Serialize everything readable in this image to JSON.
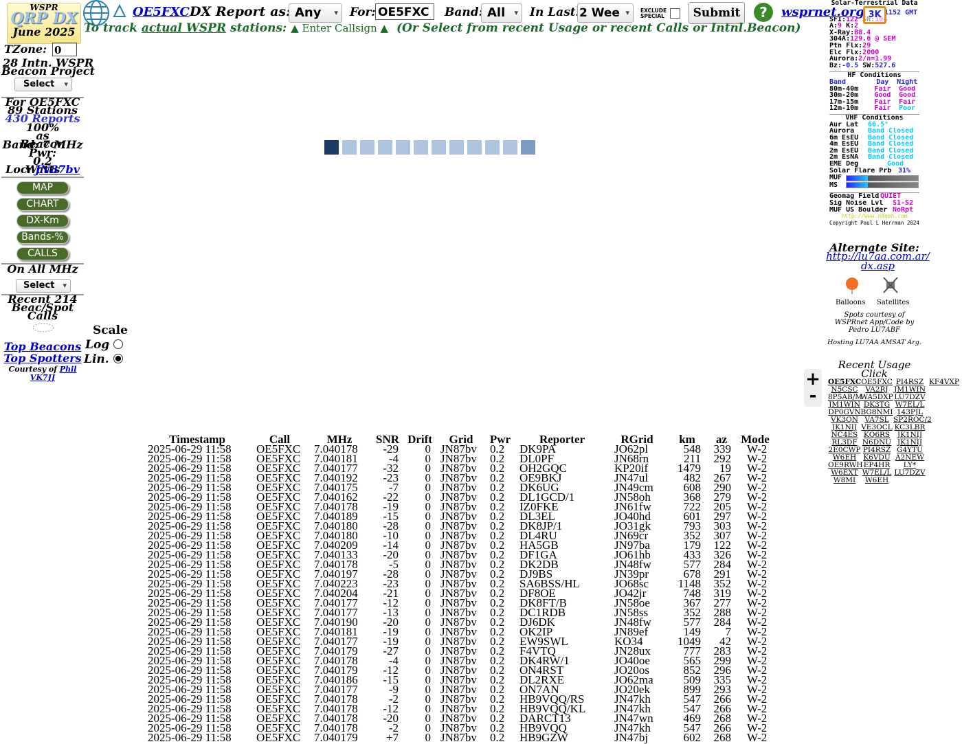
{
  "header": {
    "wspr": "WSPR",
    "logo": "QRP DX",
    "date": "June 2025",
    "call": "OE5FXC",
    "report_as": "DX Report as:",
    "as_value": "Any",
    "for_label": "For:",
    "for_value": "OE5FXC",
    "band_label": "Band:",
    "band_value": "All",
    "last_label": "In Last:",
    "last_value": "2 Wee",
    "exclude": "EXCLUDE SPECIAL",
    "submit": "Submit",
    "help": "?",
    "site": "wsprnet.org",
    "k3": "3K"
  },
  "subheader": {
    "track": "To track",
    "actual": "actual WSPR",
    "stations": "stations:",
    "enter": "▲ Enter Callsign ▲",
    "or_select": "(Or Select from recent Usage or recent Calls or Intnl.Beacon)"
  },
  "sidebar": {
    "tzone_label": "TZone:",
    "tzone_value": "0",
    "beacon_project": "28 Intn. WSPR Beacon Project",
    "select1": "Select",
    "for_call": "For OE5FXC",
    "stations": "89 Stations",
    "reports": "430 Reports",
    "beacon_pct": "100% as Beacon",
    "band": "Band: 7 MHz",
    "pwr": "Pwr: 0.2 Watts",
    "loc_label": "Loc:",
    "loc_value": "JN87bv",
    "buttons": [
      "MAP",
      "CHART",
      "DX-Km",
      "Bands-%",
      "CALLS"
    ],
    "all_mhz": "On All MHz",
    "select2": "Select",
    "recent_calls": "Recent 214 Beac/Spot Calls",
    "top_beacons": "Top Beacons",
    "top_spotters": "Top Spotters",
    "courtesy": "Courtesy of",
    "courtesy_link": "Phil VK7JJ"
  },
  "scale": {
    "title": "Scale",
    "log": "Log",
    "lin": "Lin."
  },
  "table": {
    "columns": [
      "Timestamp",
      "Call",
      "MHz",
      "SNR",
      "Drift",
      "Grid",
      "Pwr",
      "Reporter",
      "RGrid",
      "km",
      "az",
      "Mode"
    ],
    "rows": [
      [
        "2025-06-29 11:58",
        "OE5FXC",
        "7.040178",
        "-29",
        "0",
        "JN87bv",
        "0.2",
        "DK9PA",
        "JO62pl",
        "548",
        "339",
        "W-2"
      ],
      [
        "2025-06-29 11:58",
        "OE5FXC",
        "7.040181",
        "-4",
        "0",
        "JN87bv",
        "0.2",
        "DL0PF",
        "JN68rn",
        "211",
        "292",
        "W-2"
      ],
      [
        "2025-06-29 11:58",
        "OE5FXC",
        "7.040177",
        "-32",
        "0",
        "JN87bv",
        "0.2",
        "OH2GQC",
        "KP20if",
        "1479",
        "19",
        "W-2"
      ],
      [
        "2025-06-29 11:58",
        "OE5FXC",
        "7.040192",
        "-23",
        "0",
        "JN87bv",
        "0.2",
        "OE9BKJ",
        "JN47ul",
        "482",
        "267",
        "W-2"
      ],
      [
        "2025-06-29 11:58",
        "OE5FXC",
        "7.040175",
        "-7",
        "0",
        "JN87bv",
        "0.2",
        "DK6UG",
        "JN49cm",
        "608",
        "290",
        "W-2"
      ],
      [
        "2025-06-29 11:58",
        "OE5FXC",
        "7.040162",
        "-22",
        "0",
        "JN87bv",
        "0.2",
        "DL1GCD/1",
        "JN58oh",
        "368",
        "279",
        "W-2"
      ],
      [
        "2025-06-29 11:58",
        "OE5FXC",
        "7.040178",
        "-19",
        "0",
        "JN87bv",
        "0.2",
        "IZ0FKE",
        "JN61fw",
        "722",
        "205",
        "W-2"
      ],
      [
        "2025-06-29 11:58",
        "OE5FXC",
        "7.040189",
        "-15",
        "0",
        "JN87bv",
        "0.2",
        "DL3EL",
        "JO40hd",
        "601",
        "297",
        "W-2"
      ],
      [
        "2025-06-29 11:58",
        "OE5FXC",
        "7.040180",
        "-28",
        "0",
        "JN87bv",
        "0.2",
        "DK8JP/1",
        "JO31gk",
        "793",
        "303",
        "W-2"
      ],
      [
        "2025-06-29 11:58",
        "OE5FXC",
        "7.040180",
        "-10",
        "0",
        "JN87bv",
        "0.2",
        "DL4RU",
        "JN69cr",
        "352",
        "307",
        "W-2"
      ],
      [
        "2025-06-29 11:58",
        "OE5FXC",
        "7.040209",
        "-14",
        "0",
        "JN87bv",
        "0.2",
        "HA5GB",
        "JN97ba",
        "179",
        "122",
        "W-2"
      ],
      [
        "2025-06-29 11:58",
        "OE5FXC",
        "7.040133",
        "-20",
        "0",
        "JN87bv",
        "0.2",
        "DF1GA",
        "JO61hb",
        "433",
        "326",
        "W-2"
      ],
      [
        "2025-06-29 11:58",
        "OE5FXC",
        "7.040178",
        "-5",
        "0",
        "JN87bv",
        "0.2",
        "DK2DB",
        "JN48fw",
        "577",
        "284",
        "W-2"
      ],
      [
        "2025-06-29 11:58",
        "OE5FXC",
        "7.040197",
        "-28",
        "0",
        "JN87bv",
        "0.2",
        "DJ9BS",
        "JN39pr",
        "678",
        "291",
        "W-2"
      ],
      [
        "2025-06-29 11:58",
        "OE5FXC",
        "7.040223",
        "-23",
        "0",
        "JN87bv",
        "0.2",
        "SA6BSS/HL",
        "JO68sc",
        "1148",
        "352",
        "W-2"
      ],
      [
        "2025-06-29 11:58",
        "OE5FXC",
        "7.040204",
        "-21",
        "0",
        "JN87bv",
        "0.2",
        "DF8OE",
        "JO42jr",
        "748",
        "319",
        "W-2"
      ],
      [
        "2025-06-29 11:58",
        "OE5FXC",
        "7.040177",
        "-12",
        "0",
        "JN87bv",
        "0.2",
        "DK8FT/B",
        "JN58oe",
        "367",
        "277",
        "W-2"
      ],
      [
        "2025-06-29 11:58",
        "OE5FXC",
        "7.040177",
        "-13",
        "0",
        "JN87bv",
        "0.2",
        "DC1RDB",
        "JN58ss",
        "352",
        "288",
        "W-2"
      ],
      [
        "2025-06-29 11:58",
        "OE5FXC",
        "7.040190",
        "-20",
        "0",
        "JN87bv",
        "0.2",
        "DJ6DK",
        "JN48fw",
        "577",
        "284",
        "W-2"
      ],
      [
        "2025-06-29 11:58",
        "OE5FXC",
        "7.040181",
        "-19",
        "0",
        "JN87bv",
        "0.2",
        "OK2IP",
        "JN89ef",
        "149",
        "7",
        "W-2"
      ],
      [
        "2025-06-29 11:58",
        "OE5FXC",
        "7.040177",
        "-19",
        "0",
        "JN87bv",
        "0.2",
        "EW9SWL",
        "KO34",
        "1049",
        "42",
        "W-2"
      ],
      [
        "2025-06-29 11:58",
        "OE5FXC",
        "7.040179",
        "-27",
        "0",
        "JN87bv",
        "0.2",
        "F4VTQ",
        "JN28ux",
        "777",
        "283",
        "W-2"
      ],
      [
        "2025-06-29 11:58",
        "OE5FXC",
        "7.040178",
        "-4",
        "0",
        "JN87bv",
        "0.2",
        "DK4RW/1",
        "JO40oe",
        "565",
        "299",
        "W-2"
      ],
      [
        "2025-06-29 11:58",
        "OE5FXC",
        "7.040179",
        "-12",
        "0",
        "JN87bv",
        "0.2",
        "ON4RST",
        "JO20os",
        "852",
        "296",
        "W-2"
      ],
      [
        "2025-06-29 11:58",
        "OE5FXC",
        "7.040186",
        "-15",
        "0",
        "JN87bv",
        "0.2",
        "DL2RXE",
        "JO62ma",
        "509",
        "335",
        "W-2"
      ],
      [
        "2025-06-29 11:58",
        "OE5FXC",
        "7.040177",
        "-9",
        "0",
        "JN87bv",
        "0.2",
        "ON7AN",
        "JO20ek",
        "899",
        "293",
        "W-2"
      ],
      [
        "2025-06-29 11:58",
        "OE5FXC",
        "7.040178",
        "-2",
        "0",
        "JN87bv",
        "0.2",
        "HB9VQQ/RS",
        "JN47kh",
        "547",
        "266",
        "W-2"
      ],
      [
        "2025-06-29 11:58",
        "OE5FXC",
        "7.040178",
        "-12",
        "0",
        "JN87bv",
        "0.2",
        "HB9VQQ/KL",
        "JN47kh",
        "547",
        "266",
        "W-2"
      ],
      [
        "2025-06-29 11:58",
        "OE5FXC",
        "7.040178",
        "-20",
        "0",
        "JN87bv",
        "0.2",
        "DARCT13",
        "JN47wn",
        "469",
        "268",
        "W-2"
      ],
      [
        "2025-06-29 11:58",
        "OE5FXC",
        "7.040178",
        "-2",
        "0",
        "JN87bv",
        "0.2",
        "HB9VQQ",
        "JN47kh",
        "547",
        "266",
        "W-2"
      ],
      [
        "2025-06-29 11:58",
        "OE5FXC",
        "7.040179",
        "+7",
        "0",
        "JN87bv",
        "0.2",
        "HB9GZW",
        "JN47bj",
        "602",
        "268",
        "W-2"
      ]
    ]
  },
  "solar": {
    "title": "Solar-Terrestrial Data",
    "time": "1152 GMT",
    "readings": [
      [
        "SFI:",
        "122"
      ],
      [
        "SN:",
        "104"
      ],
      [
        "A:",
        "9"
      ],
      [
        "K:",
        "2"
      ],
      [
        "X-Ray:",
        "B8.4"
      ],
      [
        "304A:",
        "129.6 @ SEM"
      ],
      [
        "Ptn Flx:",
        "29"
      ],
      [
        "Elc Flx:",
        "2000"
      ],
      [
        "Aurora:",
        "2/n=1.99"
      ],
      [
        "Bz:",
        "-0.5"
      ],
      [
        "SW:",
        "527.6"
      ]
    ],
    "hf_title": "HF Conditions",
    "hf": [
      [
        "Band",
        "Day",
        "Night"
      ],
      [
        "80m-40m",
        "Fair",
        "Good"
      ],
      [
        "30m-20m",
        "Good",
        "Good"
      ],
      [
        "17m-15m",
        "Fair",
        "Fair"
      ],
      [
        "12m-10m",
        "Fair",
        "Poor"
      ]
    ],
    "vhf_title": "VHF Conditions",
    "vhf": [
      [
        "Aur Lat",
        "66.5°"
      ],
      [
        "Aurora",
        "Band Closed"
      ],
      [
        "6m EsEU",
        "Band Closed"
      ],
      [
        "4m EsEU",
        "Band Closed"
      ],
      [
        "2m EsEU",
        "Band Closed"
      ],
      [
        "2m EsNA",
        "Band Closed"
      ],
      [
        "EME Deg",
        "Good"
      ],
      [
        "Solar Flare Prb",
        "31%"
      ]
    ],
    "muf": "MUF",
    "ms": "MS",
    "extra": [
      [
        "Geomag Field",
        "QUIET"
      ],
      [
        "Sig Noise Lvl",
        "S1-S2"
      ],
      [
        "MUF US Boulder",
        "NoRpt"
      ]
    ],
    "url": "http://www.n0nbh.com",
    "copyright": "Copyright Paul L Herrman 2024"
  },
  "right": {
    "alt_site": "Alternate Site:",
    "alt_url": "http://lu7aa.com.ar/dx.asp",
    "balloons": "Balloons",
    "satellites": "Satellites",
    "credits": "Spots courtesy of WSPRnet App/Code by Pedro LU7ABF",
    "hosting": "Hosting LU7AA AMSAT Arg.",
    "usage_title": "Recent Usage",
    "click": "Click",
    "zoom_in": "+",
    "zoom_out": "-",
    "usage": [
      [
        "OE5FXC",
        "OE5FXC",
        "PI4RSZ",
        "KF4VXP"
      ],
      [
        "N5CSC",
        "VA2RJ",
        "JM1WIN"
      ],
      [
        "8P5AB/M",
        "WA5DXP",
        "LU7DZV"
      ],
      [
        "JM1WIN",
        "DK3TG",
        "W7EL/L"
      ],
      [
        "DP0GVN",
        "BG8NMI",
        "143PJL"
      ],
      [
        "VK3QN",
        "VA7SL",
        "SP2ROC/2"
      ],
      [
        "JK1NIJ",
        "VE3OCL",
        "KC3LBR"
      ],
      [
        "NC4ES",
        "KQ6RS",
        "JK1NIJ"
      ],
      [
        "RL3DF",
        "N6DNU",
        "JK1NIJ"
      ],
      [
        "2E0CWP",
        "PI4RSZ",
        "G4YTU"
      ],
      [
        "W6EH",
        "K6VDU",
        "A2NEW"
      ],
      [
        "OE9RWH",
        "EP4HR",
        "LY*"
      ],
      [
        "W6EXT",
        "W7EL/L",
        "LU7DZV"
      ],
      [
        "W8MI",
        "W6EH"
      ]
    ]
  }
}
